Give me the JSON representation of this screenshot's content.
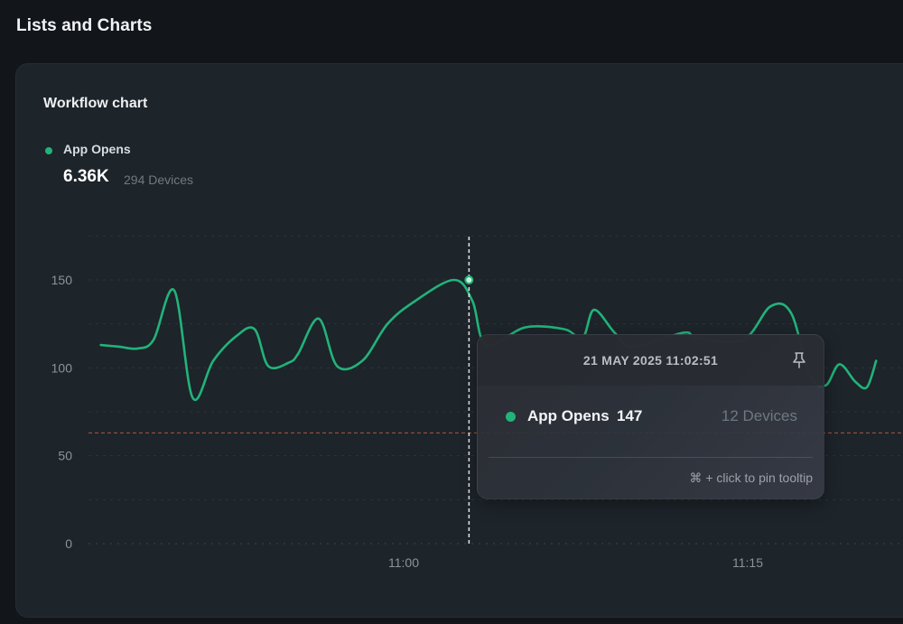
{
  "page": {
    "title": "Lists and Charts"
  },
  "card": {
    "title": "Workflow chart"
  },
  "legend": {
    "series_name": "App Opens",
    "total": "6.36K",
    "devices": "294 Devices",
    "color": "#22b37a"
  },
  "tooltip": {
    "timestamp": "21 MAY 2025 11:02:51",
    "series_name": "App Opens",
    "value": "147",
    "devices": "12 Devices",
    "hint": "⌘ + click to pin tooltip",
    "pin_icon": "pin-icon"
  },
  "chart_data": {
    "type": "line",
    "title": "Workflow chart",
    "xlabel": "",
    "ylabel": "",
    "ylim": [
      0,
      180
    ],
    "yticks": [
      "0",
      "50",
      "100",
      "150"
    ],
    "yticks_values": [
      0,
      50,
      100,
      150
    ],
    "xticks": [
      {
        "label": "11:00",
        "t": 0
      },
      {
        "label": "11:15",
        "t": 15
      }
    ],
    "xlim_minutes": [
      -14.2,
      20.6
    ],
    "threshold": 63,
    "grid": true,
    "crosshair_t": 2.85,
    "series": [
      {
        "name": "App Opens",
        "color": "#22b37a",
        "points": [
          [
            -13.2,
            113
          ],
          [
            -12.4,
            112
          ],
          [
            -11.6,
            111
          ],
          [
            -10.9,
            116
          ],
          [
            -10.0,
            144
          ],
          [
            -9.2,
            83
          ],
          [
            -8.3,
            104
          ],
          [
            -7.3,
            118
          ],
          [
            -6.5,
            122
          ],
          [
            -5.9,
            101
          ],
          [
            -5.0,
            103
          ],
          [
            -4.6,
            108
          ],
          [
            -3.7,
            128
          ],
          [
            -2.9,
            101
          ],
          [
            -1.8,
            104
          ],
          [
            -0.7,
            125
          ],
          [
            0.5,
            138
          ],
          [
            2.2,
            150
          ],
          [
            3.0,
            138
          ],
          [
            3.6,
            113
          ],
          [
            5.3,
            123
          ],
          [
            7.0,
            122
          ],
          [
            7.8,
            117
          ],
          [
            8.3,
            133
          ],
          [
            9.2,
            120
          ],
          [
            10.0,
            112
          ],
          [
            12.2,
            120
          ],
          [
            12.8,
            117
          ],
          [
            14.8,
            116
          ],
          [
            16.0,
            135
          ],
          [
            16.9,
            131
          ],
          [
            17.7,
            96
          ],
          [
            18.4,
            90
          ],
          [
            19.0,
            102
          ],
          [
            19.7,
            92
          ],
          [
            20.2,
            89
          ],
          [
            20.6,
            104
          ]
        ]
      }
    ]
  }
}
